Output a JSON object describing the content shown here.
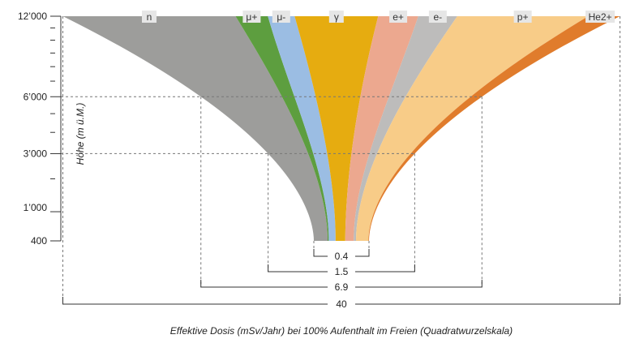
{
  "chart_data": {
    "type": "area",
    "title": "",
    "xlabel": "Effektive Dosis (mSv/Jahr) bei 100% Aufenthalt im Freien (Quadratwurzelskala)",
    "ylabel": "Höhe (m ü.M.)",
    "x_scale": "sqrt",
    "y_scale": "sqrt",
    "ylim": [
      400,
      12000
    ],
    "yticks": [
      {
        "value": 12000,
        "label": "12’000"
      },
      {
        "value": 6000,
        "label": "6’000"
      },
      {
        "value": 3000,
        "label": "3’000"
      },
      {
        "value": 1000,
        "label": "1’000"
      },
      {
        "value": 400,
        "label": "400"
      }
    ],
    "yminor": [
      11000,
      10000,
      9000,
      8000,
      7000,
      5000,
      4000,
      2000
    ],
    "layers": [
      {
        "name": "n",
        "color": "#9d9d9b"
      },
      {
        "name": "μ+",
        "color": "#5d9e3f"
      },
      {
        "name": "μ-",
        "color": "#9bbde3"
      },
      {
        "name": "γ",
        "color": "#e6ac10"
      },
      {
        "name": "e+",
        "color": "#eca88f"
      },
      {
        "name": "e-",
        "color": "#bdbcbb"
      },
      {
        "name": "p+",
        "color": "#f8cc88"
      },
      {
        "name": "He2+",
        "color": "#e07c2c"
      }
    ],
    "total_doses": [
      {
        "altitude": 400,
        "dose": 0.4,
        "label": "0.4"
      },
      {
        "altitude": 3000,
        "dose": 1.5,
        "label": "1.5"
      },
      {
        "altitude": 6000,
        "dose": 6.9,
        "label": "6.9"
      },
      {
        "altitude": 12000,
        "dose": 40,
        "label": "40"
      }
    ]
  }
}
